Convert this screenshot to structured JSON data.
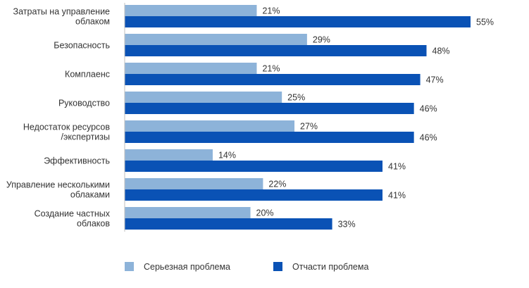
{
  "chart_data": {
    "type": "bar",
    "orientation": "horizontal",
    "categories": [
      [
        "Затраты на управление",
        "облаком"
      ],
      [
        "Безопасность"
      ],
      [
        "Комплаенс"
      ],
      [
        "Руководство"
      ],
      [
        "Недостаток ресурсов",
        "/экспертизы"
      ],
      [
        "Эффективность"
      ],
      [
        "Управление несколькими",
        "облаками"
      ],
      [
        "Создание частных",
        "облаков"
      ]
    ],
    "series": [
      {
        "name": "Серьезная проблема",
        "color": "#8db3d9",
        "values": [
          21,
          29,
          21,
          25,
          27,
          14,
          22,
          20
        ],
        "labels": [
          "21%",
          "29%",
          "21%",
          "25%",
          "27%",
          "14%",
          "22%",
          "20%"
        ]
      },
      {
        "name": "Отчасти проблема",
        "color": "#0a52b5",
        "values": [
          55,
          48,
          47,
          46,
          46,
          41,
          41,
          33
        ],
        "labels": [
          "55%",
          "48%",
          "47%",
          "46%",
          "46%",
          "41%",
          "41%",
          "33%"
        ]
      }
    ],
    "xlim": [
      0,
      55
    ],
    "grid": false,
    "legend_position": "bottom"
  }
}
